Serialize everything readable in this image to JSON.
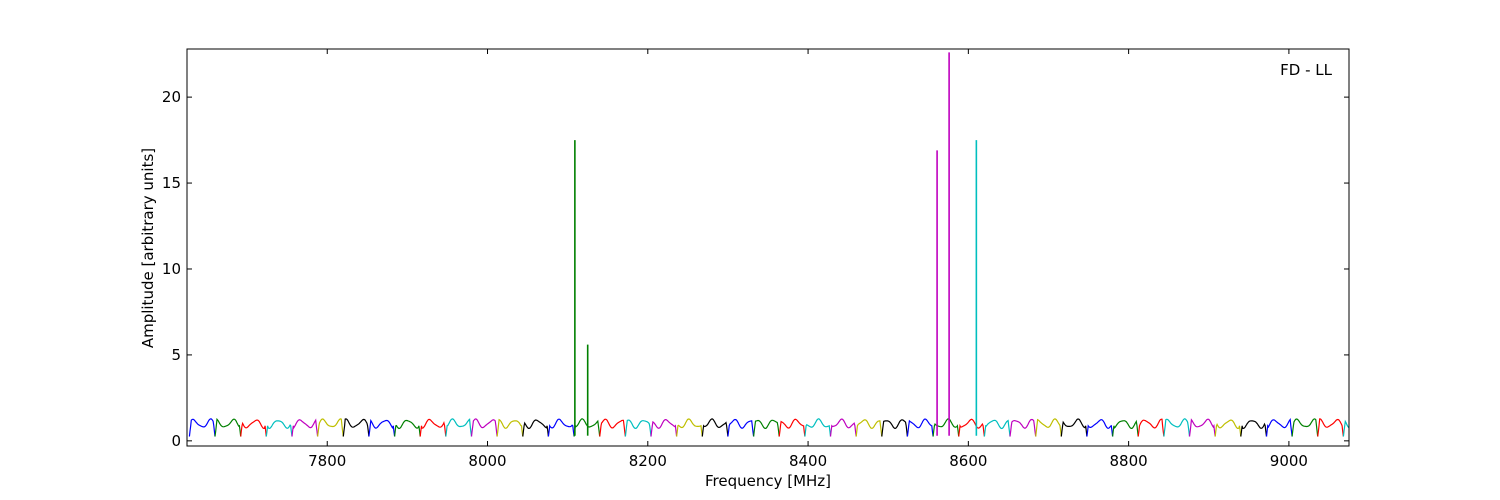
{
  "chart_data": {
    "type": "line",
    "title": "",
    "xlabel": "Frequency [MHz]",
    "ylabel": "Amplitude [arbitrary units]",
    "annotation": "FD - LL",
    "xlim": [
      7625,
      9075
    ],
    "ylim": [
      -0.3,
      22.8
    ],
    "xticks": [
      7800,
      8000,
      8200,
      8400,
      8600,
      8800,
      9000
    ],
    "yticks": [
      0,
      5,
      10,
      15,
      20
    ],
    "grid": false,
    "legend": "none",
    "channel_width_mhz": 32,
    "channel_start_mhz": 7628,
    "channel_colors": [
      "#0000ff",
      "#008000",
      "#ff0000",
      "#00bfbf",
      "#bf00bf",
      "#bfbf00",
      "#000000"
    ],
    "spikes": [
      {
        "x": 8109,
        "y": 17.5,
        "color": "#008000"
      },
      {
        "x": 8125,
        "y": 5.6,
        "color": "#008000"
      },
      {
        "x": 8561,
        "y": 16.9,
        "color": "#bf00bf"
      },
      {
        "x": 8576,
        "y": 22.6,
        "color": "#bf00bf"
      },
      {
        "x": 8610,
        "y": 17.5,
        "color": "#00bfbf"
      }
    ]
  }
}
